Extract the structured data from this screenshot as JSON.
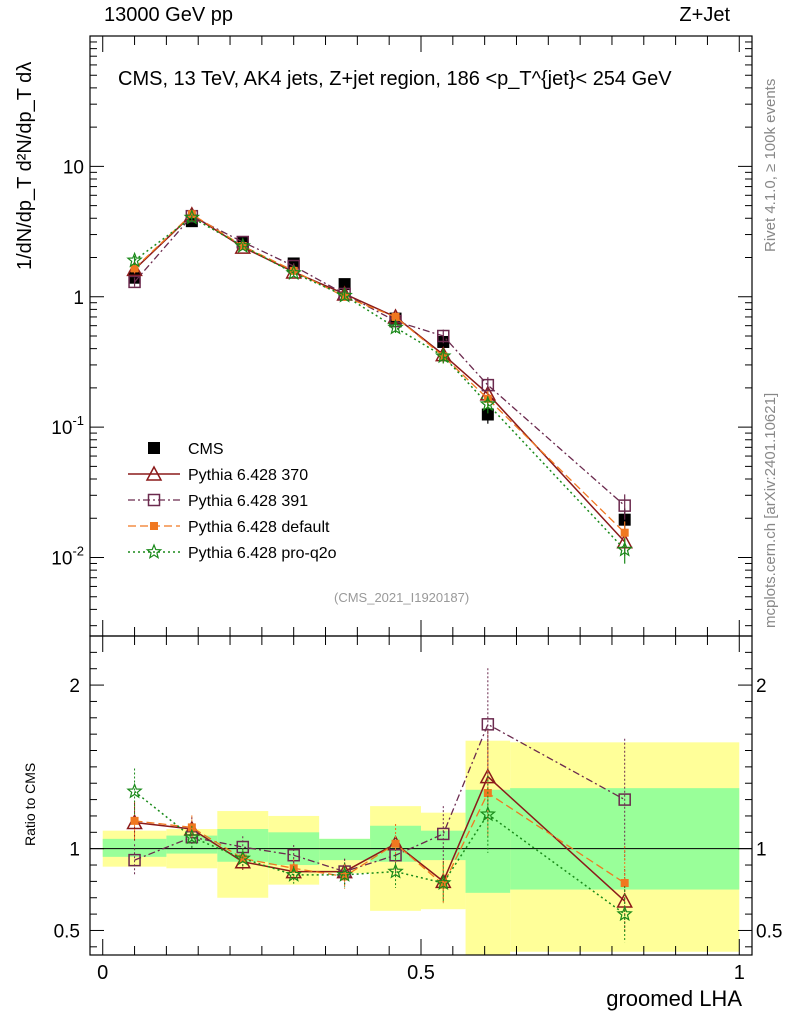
{
  "header": {
    "left": "13000 GeV pp",
    "right": "Z+Jet"
  },
  "side": {
    "rivet": "Rivet 4.1.0, ≥ 100k events",
    "mcplots": "mcplots.cern.ch [arXiv:2401.10621]"
  },
  "analysis_id": "(CMS_2021_I1920187)",
  "chart_data": [
    {
      "type": "line",
      "scale": "log",
      "title": "CMS, 13 TeV, AK4 jets, Z+jet region, 186 <p_T^{jet}< 254 GeV",
      "ylabel": "1/dN/dp_T  d²N/dp_T dλ",
      "xlabel": "groomed LHA",
      "xlim": [
        -0.02,
        1.02
      ],
      "ylim": [
        0.0025,
        100
      ],
      "y_ticks": [
        "10^{-2}",
        "10^{-1}",
        "1",
        "10"
      ],
      "x": [
        0.05,
        0.14,
        0.22,
        0.3,
        0.38,
        0.46,
        0.535,
        0.605,
        0.82
      ],
      "x_edges": [
        0.0,
        0.1,
        0.18,
        0.26,
        0.34,
        0.42,
        0.5,
        0.57,
        0.64,
        1.0
      ],
      "series": [
        {
          "name": "CMS",
          "color": "#000000",
          "marker": "square-filled",
          "values": [
            1.4,
            3.8,
            2.6,
            1.8,
            1.25,
            0.68,
            0.45,
            0.125,
            0.0195
          ]
        },
        {
          "name": "Pythia 6.428 370",
          "color": "#8b1a1a",
          "marker": "triangle-open",
          "values": [
            1.62,
            4.25,
            2.4,
            1.55,
            1.05,
            0.7,
            0.36,
            0.18,
            0.0132
          ]
        },
        {
          "name": "Pythia 6.428 391",
          "color": "#6b2a4e",
          "marker": "square-open",
          "values": [
            1.3,
            4.15,
            2.63,
            1.72,
            1.05,
            0.65,
            0.5,
            0.21,
            0.025
          ]
        },
        {
          "name": "Pythia 6.428 default",
          "color": "#f07820",
          "marker": "square-small",
          "values": [
            1.65,
            4.3,
            2.45,
            1.58,
            1.0,
            0.7,
            0.35,
            0.165,
            0.0155
          ]
        },
        {
          "name": "Pythia 6.428 pro-q2o",
          "color": "#1a8a1a",
          "marker": "star",
          "values": [
            1.9,
            4.05,
            2.45,
            1.52,
            1.02,
            0.58,
            0.35,
            0.15,
            0.0115
          ]
        }
      ]
    },
    {
      "type": "line",
      "ylabel": "Ratio to CMS",
      "xlabel": "groomed LHA",
      "xlim": [
        -0.02,
        1.02
      ],
      "ylim": [
        0.35,
        2.3
      ],
      "y_ticks": [
        "0.5",
        "1",
        "2"
      ],
      "x_ticks": [
        "0",
        "0.5",
        "1"
      ],
      "band_stat": [
        [
          0.95,
          1.06
        ],
        [
          0.97,
          1.08
        ],
        [
          0.92,
          1.12
        ],
        [
          0.9,
          1.1
        ],
        [
          0.93,
          1.06
        ],
        [
          0.92,
          1.14
        ],
        [
          0.93,
          1.11
        ],
        [
          0.73,
          1.36
        ],
        [
          0.75,
          1.37
        ]
      ],
      "band_total": [
        [
          0.89,
          1.11
        ],
        [
          0.88,
          1.12
        ],
        [
          0.7,
          1.23
        ],
        [
          0.78,
          1.2
        ],
        [
          0.85,
          1.06
        ],
        [
          0.62,
          1.26
        ],
        [
          0.63,
          1.22
        ],
        [
          0.35,
          1.66
        ],
        [
          0.37,
          1.65
        ]
      ],
      "series": [
        {
          "name": "Pythia 6.428 370",
          "values": [
            1.16,
            1.12,
            0.92,
            0.86,
            0.86,
            1.03,
            0.8,
            1.44,
            0.68
          ]
        },
        {
          "name": "Pythia 6.428 391",
          "values": [
            0.93,
            1.07,
            1.01,
            0.96,
            0.86,
            0.96,
            1.09,
            1.76,
            1.3
          ]
        },
        {
          "name": "Pythia 6.428 default",
          "values": [
            1.17,
            1.13,
            0.94,
            0.88,
            0.83,
            1.03,
            0.78,
            1.34,
            0.79
          ]
        },
        {
          "name": "Pythia 6.428 pro-q2o",
          "values": [
            1.35,
            1.07,
            0.94,
            0.84,
            0.84,
            0.86,
            0.79,
            1.21,
            0.6
          ]
        }
      ]
    }
  ]
}
